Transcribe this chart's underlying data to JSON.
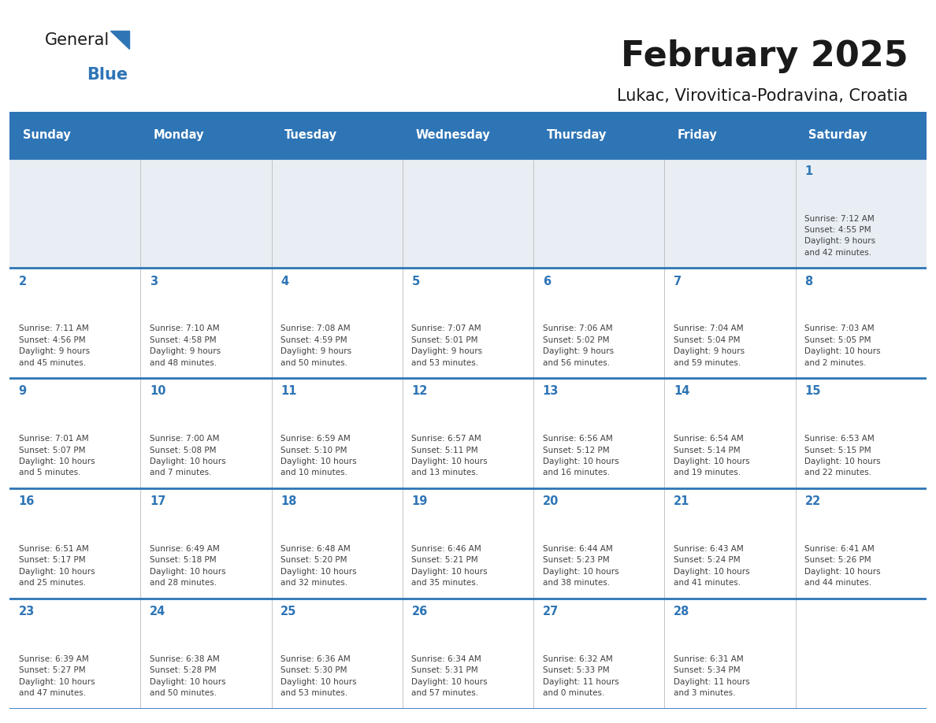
{
  "title": "February 2025",
  "subtitle": "Lukac, Virovitica-Podravina, Croatia",
  "days_of_week": [
    "Sunday",
    "Monday",
    "Tuesday",
    "Wednesday",
    "Thursday",
    "Friday",
    "Saturday"
  ],
  "header_bg": "#2E75B6",
  "header_text": "#FFFFFF",
  "row1_bg": "#E8EEF4",
  "row_bg": "#FFFFFF",
  "day_number_color": "#2E75B6",
  "cell_text_color": "#404040",
  "divider_color": "#2E75B6",
  "logo_text_color": "#1a1a1a",
  "logo_blue_color": "#2E75B6",
  "title_color": "#1a1a1a",
  "calendar_data": [
    [
      null,
      null,
      null,
      null,
      null,
      null,
      {
        "day": "1",
        "sunrise": "7:12 AM",
        "sunset": "4:55 PM",
        "daylight": "9 hours\nand 42 minutes."
      }
    ],
    [
      {
        "day": "2",
        "sunrise": "7:11 AM",
        "sunset": "4:56 PM",
        "daylight": "9 hours\nand 45 minutes."
      },
      {
        "day": "3",
        "sunrise": "7:10 AM",
        "sunset": "4:58 PM",
        "daylight": "9 hours\nand 48 minutes."
      },
      {
        "day": "4",
        "sunrise": "7:08 AM",
        "sunset": "4:59 PM",
        "daylight": "9 hours\nand 50 minutes."
      },
      {
        "day": "5",
        "sunrise": "7:07 AM",
        "sunset": "5:01 PM",
        "daylight": "9 hours\nand 53 minutes."
      },
      {
        "day": "6",
        "sunrise": "7:06 AM",
        "sunset": "5:02 PM",
        "daylight": "9 hours\nand 56 minutes."
      },
      {
        "day": "7",
        "sunrise": "7:04 AM",
        "sunset": "5:04 PM",
        "daylight": "9 hours\nand 59 minutes."
      },
      {
        "day": "8",
        "sunrise": "7:03 AM",
        "sunset": "5:05 PM",
        "daylight": "10 hours\nand 2 minutes."
      }
    ],
    [
      {
        "day": "9",
        "sunrise": "7:01 AM",
        "sunset": "5:07 PM",
        "daylight": "10 hours\nand 5 minutes."
      },
      {
        "day": "10",
        "sunrise": "7:00 AM",
        "sunset": "5:08 PM",
        "daylight": "10 hours\nand 7 minutes."
      },
      {
        "day": "11",
        "sunrise": "6:59 AM",
        "sunset": "5:10 PM",
        "daylight": "10 hours\nand 10 minutes."
      },
      {
        "day": "12",
        "sunrise": "6:57 AM",
        "sunset": "5:11 PM",
        "daylight": "10 hours\nand 13 minutes."
      },
      {
        "day": "13",
        "sunrise": "6:56 AM",
        "sunset": "5:12 PM",
        "daylight": "10 hours\nand 16 minutes."
      },
      {
        "day": "14",
        "sunrise": "6:54 AM",
        "sunset": "5:14 PM",
        "daylight": "10 hours\nand 19 minutes."
      },
      {
        "day": "15",
        "sunrise": "6:53 AM",
        "sunset": "5:15 PM",
        "daylight": "10 hours\nand 22 minutes."
      }
    ],
    [
      {
        "day": "16",
        "sunrise": "6:51 AM",
        "sunset": "5:17 PM",
        "daylight": "10 hours\nand 25 minutes."
      },
      {
        "day": "17",
        "sunrise": "6:49 AM",
        "sunset": "5:18 PM",
        "daylight": "10 hours\nand 28 minutes."
      },
      {
        "day": "18",
        "sunrise": "6:48 AM",
        "sunset": "5:20 PM",
        "daylight": "10 hours\nand 32 minutes."
      },
      {
        "day": "19",
        "sunrise": "6:46 AM",
        "sunset": "5:21 PM",
        "daylight": "10 hours\nand 35 minutes."
      },
      {
        "day": "20",
        "sunrise": "6:44 AM",
        "sunset": "5:23 PM",
        "daylight": "10 hours\nand 38 minutes."
      },
      {
        "day": "21",
        "sunrise": "6:43 AM",
        "sunset": "5:24 PM",
        "daylight": "10 hours\nand 41 minutes."
      },
      {
        "day": "22",
        "sunrise": "6:41 AM",
        "sunset": "5:26 PM",
        "daylight": "10 hours\nand 44 minutes."
      }
    ],
    [
      {
        "day": "23",
        "sunrise": "6:39 AM",
        "sunset": "5:27 PM",
        "daylight": "10 hours\nand 47 minutes."
      },
      {
        "day": "24",
        "sunrise": "6:38 AM",
        "sunset": "5:28 PM",
        "daylight": "10 hours\nand 50 minutes."
      },
      {
        "day": "25",
        "sunrise": "6:36 AM",
        "sunset": "5:30 PM",
        "daylight": "10 hours\nand 53 minutes."
      },
      {
        "day": "26",
        "sunrise": "6:34 AM",
        "sunset": "5:31 PM",
        "daylight": "10 hours\nand 57 minutes."
      },
      {
        "day": "27",
        "sunrise": "6:32 AM",
        "sunset": "5:33 PM",
        "daylight": "11 hours\nand 0 minutes."
      },
      {
        "day": "28",
        "sunrise": "6:31 AM",
        "sunset": "5:34 PM",
        "daylight": "11 hours\nand 3 minutes."
      },
      null
    ]
  ]
}
